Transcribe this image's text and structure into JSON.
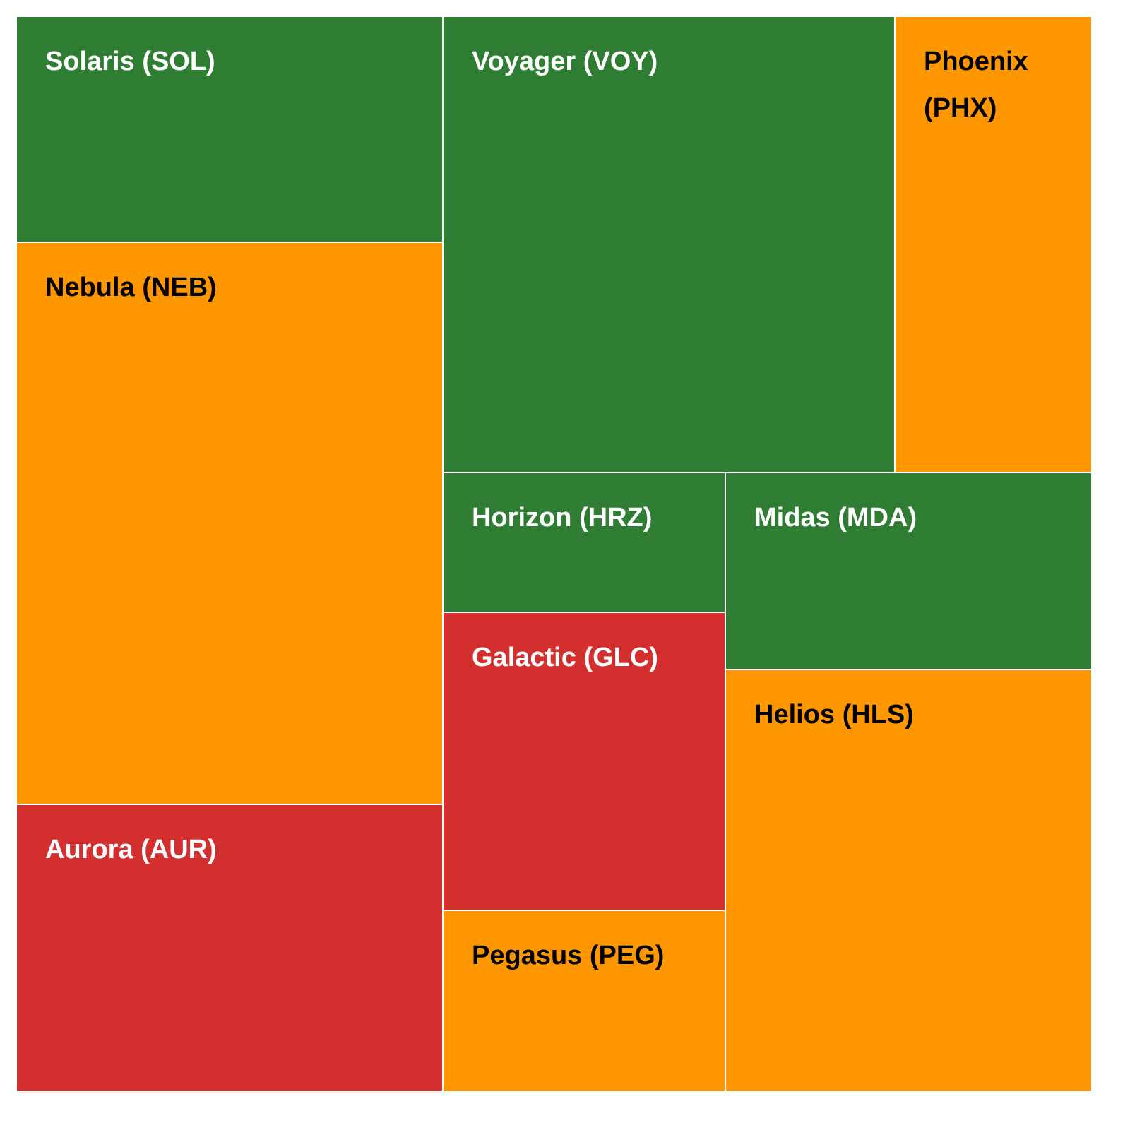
{
  "chart_data": {
    "type": "treemap",
    "colors": {
      "green": "#2e7d32",
      "orange": "#ff9800",
      "red": "#d32f2f",
      "text_on_dark": "#ffffff",
      "text_on_light": "#000000",
      "border": "#ffffff"
    },
    "items": [
      {
        "label": "Solaris (SOL)",
        "color": "#2e7d32",
        "text_color": "#ffffff"
      },
      {
        "label": "Nebula (NEB)",
        "color": "#ff9800",
        "text_color": "#000000"
      },
      {
        "label": "Aurora (AUR)",
        "color": "#d32f2f",
        "text_color": "#ffffff"
      },
      {
        "label": "Voyager (VOY)",
        "color": "#2e7d32",
        "text_color": "#ffffff"
      },
      {
        "label": "Phoenix (PHX)",
        "color": "#ff9800",
        "text_color": "#000000"
      },
      {
        "label": "Horizon (HRZ)",
        "color": "#2e7d32",
        "text_color": "#ffffff"
      },
      {
        "label": "Galactic (GLC)",
        "color": "#d32f2f",
        "text_color": "#ffffff"
      },
      {
        "label": "Pegasus (PEG)",
        "color": "#ff9800",
        "text_color": "#000000"
      },
      {
        "label": "Midas (MDA)",
        "color": "#2e7d32",
        "text_color": "#ffffff"
      },
      {
        "label": "Helios (HLS)",
        "color": "#ff9800",
        "text_color": "#000000"
      }
    ]
  }
}
